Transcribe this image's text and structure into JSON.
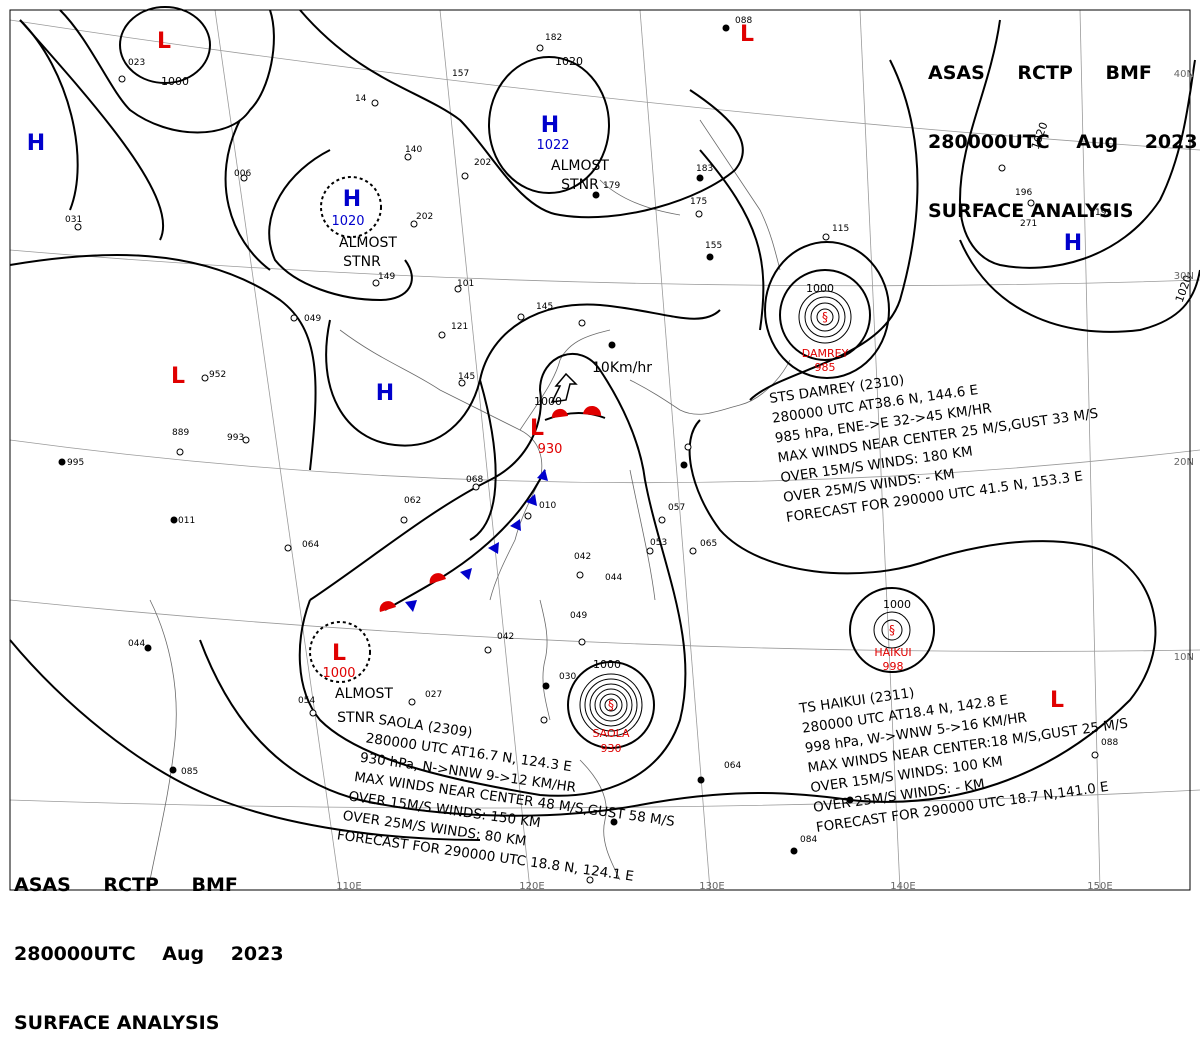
{
  "header": {
    "line1": "ASAS RCTP BMF",
    "line2": "280000UTC Aug 2023",
    "line3": "SURFACE ANALYSIS"
  },
  "grid_labels": {
    "lon": [
      "110E",
      "120E",
      "130E",
      "140E",
      "150E"
    ],
    "lat": [
      "40N",
      "30N",
      "20N",
      "10N"
    ]
  },
  "pressure_centers": [
    {
      "type": "L",
      "value": "1000",
      "color": "#e00000"
    },
    {
      "type": "H",
      "value": "1022",
      "note": "ALMOST STNR",
      "color": "#0000cc"
    },
    {
      "type": "H",
      "value": "1020",
      "note": "ALMOST STNR",
      "color": "#0000cc"
    },
    {
      "type": "H",
      "color": "#0000cc"
    },
    {
      "type": "H",
      "color": "#0000cc"
    },
    {
      "type": "H",
      "color": "#0000cc"
    },
    {
      "type": "L",
      "color": "#e00000"
    },
    {
      "type": "L",
      "color": "#e00000"
    },
    {
      "type": "L",
      "value": "1000",
      "color": "#e00000"
    },
    {
      "type": "L",
      "value": "1000",
      "note": "ALMOST STNR",
      "color": "#e00000"
    },
    {
      "type": "L",
      "color": "#e00000"
    }
  ],
  "isobar_labels": [
    "1020",
    "1000",
    "1000",
    "1000",
    "1000",
    "1000",
    "1020",
    "1020"
  ],
  "motion_label": "10Km/hr",
  "storms": [
    {
      "name": "DAMREY",
      "pressure": "985",
      "lines": [
        "STS DAMREY (2310)",
        "280000 UTC AT38.6 N, 144.6 E",
        "985 hPa, ENE->E 32->45 KM/HR",
        "MAX WINDS NEAR CENTER 25 M/S,GUST 33 M/S",
        "OVER 15M/S WINDS: 180 KM",
        "OVER 25M/S WINDS: - KM",
        "FORECAST FOR 290000 UTC 41.5 N, 153.3 E"
      ]
    },
    {
      "name": "HAIKUI",
      "pressure": "998",
      "lines": [
        "TS HAIKUI (2311)",
        "280000 UTC AT18.4 N, 142.8 E",
        "998 hPa, W->WNW 5->16 KM/HR",
        "MAX WINDS NEAR CENTER:18 M/S,GUST 25 M/S",
        "OVER 15M/S WINDS: 100 KM",
        "OVER 25M/S WINDS: - KM",
        "FORECAST FOR 290000 UTC 18.7 N,141.0 E"
      ]
    },
    {
      "name": "SAOLA",
      "pressure": "930",
      "lines": [
        "SAOLA (2309)",
        "280000 UTC AT16.7 N, 124.3 E",
        "930 hPa, N->NNW 9->12 KM/HR",
        "MAX WINDS NEAR CENTER 48 M/S,GUST 58 M/S",
        "OVER 15M/S WINDS: 150 KM",
        "OVER 25M/S WINDS: 80 KM",
        "FORECAST FOR 290000 UTC 18.8 N, 124.1 E"
      ]
    }
  ],
  "colors": {
    "low": "#e00000",
    "high": "#0000cc",
    "front_cold": "#0000cc",
    "front_warm": "#e00000"
  }
}
